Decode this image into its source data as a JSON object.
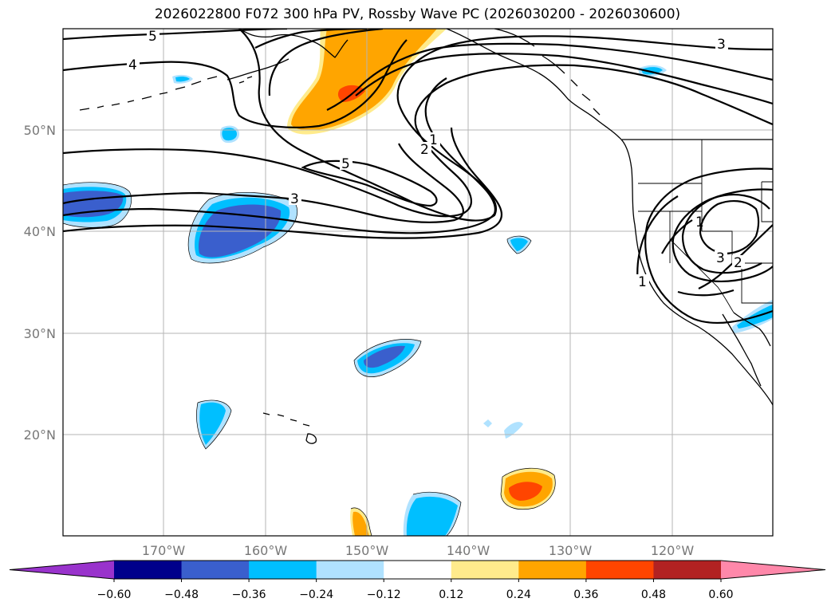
{
  "title": "2026022800 F072 300 hPa PV, Rossby Wave PC (2026030200 - 2026030600)",
  "lat_labels": [
    "50°N",
    "40°N",
    "30°N",
    "20°N"
  ],
  "lon_labels": [
    "170°W",
    "160°W",
    "150°W",
    "140°W",
    "130°W",
    "120°W"
  ],
  "colorbar": {
    "colors": [
      "#9933cc",
      "#00008b",
      "#3a5fcd",
      "#00bfff",
      "#b0e2ff",
      "#ffffff",
      "#ffeb8c",
      "#ffa500",
      "#ff4500",
      "#b22222",
      "#ff88aa"
    ],
    "tick_labels": [
      "−0.60",
      "−0.48",
      "−0.36",
      "−0.24",
      "−0.12",
      "0.12",
      "0.24",
      "0.36",
      "0.48",
      "0.60"
    ]
  },
  "contour_labels": [
    "5",
    "4",
    "5",
    "3",
    "1",
    "2",
    "3",
    "1",
    "3",
    "2",
    "1"
  ]
}
